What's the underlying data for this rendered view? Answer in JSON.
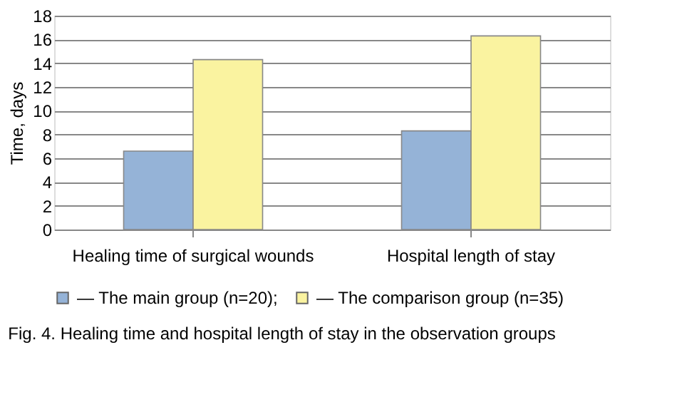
{
  "chart_data": {
    "type": "bar",
    "ylabel": "Time, days",
    "categories": [
      "Healing time of surgical wounds",
      "Hospital length of stay"
    ],
    "series": [
      {
        "name": "— The main group (n=20);",
        "color": "#95b3d7",
        "values": [
          6.6,
          8.3
        ]
      },
      {
        "name": "— The comparison group (n=35)",
        "color": "#faf3a0",
        "values": [
          14.3,
          16.3
        ]
      }
    ],
    "ylim": [
      0,
      18
    ],
    "yticks": [
      0,
      2,
      4,
      6,
      8,
      10,
      12,
      14,
      16,
      18
    ],
    "grid": "y",
    "legend": "bottom",
    "annotations": [
      "Fig. 4. Healing time and hospital length of stay in the observation groups"
    ]
  }
}
